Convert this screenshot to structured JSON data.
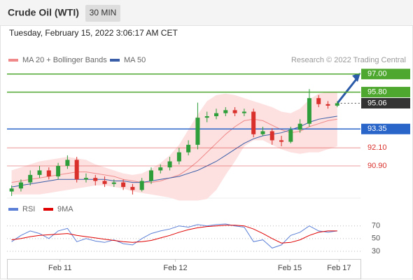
{
  "header": {
    "title": "Crude Oil (WTI)",
    "timeframe": "30 MIN",
    "timestamp": "Tuesday, February 15, 2022 3:06:17 AM CET"
  },
  "chart_data": [
    {
      "type": "candlestick",
      "source": "Research © 2022 Trading Central",
      "ylim": [
        88.9,
        97.5
      ],
      "up_color": "#2e9e3a",
      "down_color": "#d9302c",
      "open": [
        89.2,
        89.4,
        89.8,
        90.3,
        90.6,
        90.2,
        90.9,
        91.3,
        90.0,
        90.1,
        89.9,
        89.7,
        89.8,
        89.5,
        89.3,
        89.9,
        90.6,
        90.8,
        91.2,
        91.8,
        92.3,
        94.1,
        94.2,
        94.4,
        94.6,
        94.4,
        94.5,
        93.0,
        93.2,
        92.6,
        92.5,
        93.3,
        93.7,
        95.4,
        95.0,
        94.9
      ],
      "high": [
        89.6,
        90.0,
        90.6,
        90.9,
        90.8,
        91.1,
        91.6,
        91.5,
        90.4,
        90.3,
        90.2,
        90.0,
        90.0,
        89.7,
        90.1,
        90.8,
        91.0,
        91.5,
        92.1,
        92.6,
        95.1,
        94.5,
        94.7,
        94.8,
        94.8,
        94.7,
        94.7,
        93.5,
        93.4,
        92.9,
        93.5,
        94.0,
        96.0,
        95.6,
        95.2,
        95.2
      ],
      "low": [
        88.9,
        89.2,
        89.6,
        90.1,
        90.0,
        90.0,
        90.7,
        89.8,
        89.8,
        89.6,
        89.5,
        89.5,
        89.3,
        89.0,
        89.2,
        89.7,
        90.4,
        90.6,
        91.0,
        91.6,
        92.0,
        93.8,
        94.0,
        94.2,
        94.2,
        94.2,
        92.8,
        92.9,
        92.3,
        92.2,
        92.4,
        93.1,
        93.5,
        94.8,
        94.7,
        94.8
      ],
      "close": [
        89.4,
        89.8,
        90.3,
        90.6,
        90.2,
        90.9,
        91.3,
        90.0,
        90.1,
        89.9,
        89.7,
        89.8,
        89.5,
        89.3,
        89.9,
        90.6,
        90.8,
        91.2,
        91.8,
        92.3,
        94.1,
        94.2,
        94.4,
        94.6,
        94.4,
        94.5,
        93.0,
        93.2,
        92.6,
        92.5,
        93.3,
        93.7,
        95.4,
        95.0,
        94.9,
        95.06
      ],
      "series": [
        {
          "name": "MA 20 + Bollinger Bands",
          "color": "#f08a8a",
          "band_color": "#fde0e0",
          "values": [
            89.8,
            89.9,
            90.0,
            90.1,
            90.2,
            90.3,
            90.4,
            90.5,
            90.5,
            90.4,
            90.3,
            90.2,
            90.0,
            89.9,
            89.8,
            89.8,
            89.9,
            90.1,
            90.3,
            90.7,
            91.2,
            91.8,
            92.4,
            93.0,
            93.5,
            93.9,
            94.0,
            93.9,
            93.6,
            93.3,
            93.1,
            93.2,
            93.5,
            93.7,
            93.9,
            94.0
          ],
          "upper": [
            90.6,
            90.8,
            91.0,
            91.2,
            91.3,
            91.4,
            91.5,
            91.4,
            91.3,
            91.0,
            90.8,
            90.6,
            90.4,
            90.3,
            90.4,
            90.7,
            91.1,
            91.6,
            92.3,
            93.3,
            94.3,
            95.2,
            95.6,
            95.7,
            95.6,
            95.4,
            95.2,
            95.0,
            94.8,
            94.5,
            94.4,
            94.7,
            95.3,
            95.7,
            95.8,
            95.8
          ],
          "lower": [
            89.0,
            89.0,
            89.0,
            89.0,
            89.1,
            89.2,
            89.3,
            89.4,
            89.5,
            89.6,
            89.6,
            89.5,
            89.4,
            89.2,
            89.1,
            89.0,
            88.9,
            88.8,
            88.6,
            88.6,
            88.6,
            88.7,
            89.3,
            90.3,
            91.2,
            92.2,
            92.6,
            92.6,
            92.3,
            92.0,
            91.8,
            91.7,
            91.8,
            91.8,
            92.0,
            92.2
          ]
        },
        {
          "name": "MA 50",
          "color": "#3a5fa8",
          "values": [
            89.5,
            89.6,
            89.7,
            89.8,
            89.9,
            90.0,
            90.0,
            90.0,
            90.0,
            90.0,
            90.0,
            89.9,
            89.9,
            89.8,
            89.8,
            89.9,
            90.0,
            90.1,
            90.2,
            90.4,
            90.6,
            90.9,
            91.2,
            91.6,
            92.0,
            92.4,
            92.7,
            92.9,
            93.0,
            93.1,
            93.3,
            93.5,
            93.8,
            94.0,
            94.1,
            94.2
          ]
        }
      ],
      "levels": [
        {
          "value": 97.0,
          "label": "97.00",
          "color": "#4ea72e",
          "boxed": true,
          "dash": false
        },
        {
          "value": 95.8,
          "label": "95.80",
          "color": "#4ea72e",
          "boxed": true,
          "dash": false
        },
        {
          "value": 95.06,
          "label": "95.06",
          "color": "#333333",
          "boxed": true,
          "dash": true
        },
        {
          "value": 93.35,
          "label": "93.35",
          "color": "#2a66c9",
          "boxed": true,
          "dash": false
        },
        {
          "value": 92.1,
          "label": "92.10",
          "color": "#d9302c",
          "boxed": false,
          "dash": false
        },
        {
          "value": 90.9,
          "label": "90.90",
          "color": "#d9302c",
          "boxed": false,
          "dash": false
        }
      ]
    },
    {
      "type": "line",
      "ylim": [
        20,
        84
      ],
      "yticks": [
        30,
        50,
        70
      ],
      "series": [
        {
          "name": "RSI",
          "color": "#5b7fd6",
          "values": [
            45,
            55,
            62,
            58,
            50,
            62,
            66,
            45,
            50,
            46,
            44,
            48,
            42,
            40,
            50,
            58,
            62,
            65,
            70,
            68,
            72,
            70,
            72,
            73,
            70,
            68,
            45,
            48,
            35,
            40,
            55,
            60,
            70,
            62,
            60,
            62
          ]
        },
        {
          "name": "9MA",
          "color": "#e00000",
          "values": [
            48,
            50,
            53,
            55,
            56,
            57,
            58,
            55,
            53,
            51,
            49,
            47,
            45,
            44,
            45,
            47,
            51,
            55,
            60,
            64,
            67,
            69,
            70,
            71,
            71,
            70,
            65,
            58,
            50,
            43,
            44,
            48,
            55,
            60,
            62,
            62
          ]
        }
      ],
      "xticks": [
        {
          "value": 5.2,
          "label": "Feb 11"
        },
        {
          "value": 17.6,
          "label": "Feb 12"
        },
        {
          "value": 29.9,
          "label": "Feb 15"
        },
        {
          "value": 35.2,
          "label": "Feb 17"
        }
      ]
    }
  ]
}
